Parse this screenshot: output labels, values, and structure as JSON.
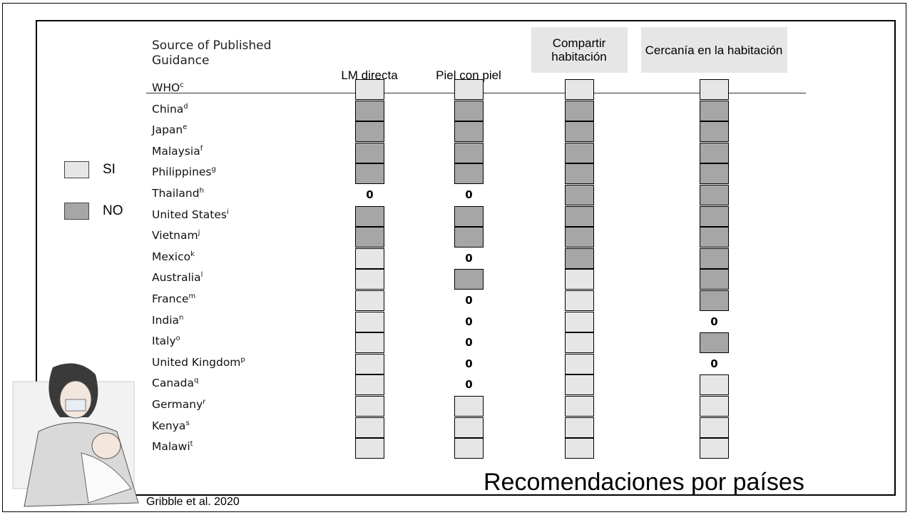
{
  "header": {
    "columns": [
      "Source of Published Guidance",
      "LM directa",
      "Piel con piel",
      "Compartir habitación",
      "Cercanía en la habitación"
    ]
  },
  "legend": [
    {
      "label": "SI",
      "color": "#e6e6e6"
    },
    {
      "label": "NO",
      "color": "#a6a6a6"
    }
  ],
  "table": {
    "rows": [
      {
        "name": "WHO",
        "sup": "c",
        "cells": [
          "SI",
          "SI",
          "SI",
          "SI"
        ]
      },
      {
        "name": "China",
        "sup": "d",
        "cells": [
          "NO",
          "NO",
          "NO",
          "NO"
        ]
      },
      {
        "name": "Japan",
        "sup": "e",
        "cells": [
          "NO",
          "NO",
          "NO",
          "NO"
        ]
      },
      {
        "name": "Malaysia",
        "sup": "f",
        "cells": [
          "NO",
          "NO",
          "NO",
          "NO"
        ]
      },
      {
        "name": "Philippines",
        "sup": "g",
        "cells": [
          "NO",
          "NO",
          "NO",
          "NO"
        ]
      },
      {
        "name": "Thailand",
        "sup": "h",
        "cells": [
          "0",
          "0",
          "NO",
          "NO"
        ]
      },
      {
        "name": "United States",
        "sup": "i",
        "cells": [
          "NO",
          "NO",
          "NO",
          "NO"
        ]
      },
      {
        "name": "Vietnam",
        "sup": "j",
        "cells": [
          "NO",
          "NO",
          "NO",
          "NO"
        ]
      },
      {
        "name": "Mexico",
        "sup": "k",
        "cells": [
          "SI",
          "0",
          "NO",
          "NO"
        ]
      },
      {
        "name": "Australia",
        "sup": "l",
        "cells": [
          "SI",
          "NO",
          "SI",
          "NO"
        ]
      },
      {
        "name": "France",
        "sup": "m",
        "cells": [
          "SI",
          "0",
          "SI",
          "NO"
        ]
      },
      {
        "name": "India",
        "sup": "n",
        "cells": [
          "SI",
          "0",
          "SI",
          "0"
        ]
      },
      {
        "name": "Italy",
        "sup": "o",
        "cells": [
          "SI",
          "0",
          "SI",
          "NO"
        ]
      },
      {
        "name": "United Kingdom",
        "sup": "p",
        "cells": [
          "SI",
          "0",
          "SI",
          "0"
        ]
      },
      {
        "name": "Canada",
        "sup": "q",
        "cells": [
          "SI",
          "0",
          "SI",
          "SI"
        ]
      },
      {
        "name": "Germany",
        "sup": "r",
        "cells": [
          "SI",
          "SI",
          "SI",
          "SI"
        ]
      },
      {
        "name": "Kenya",
        "sup": "s",
        "cells": [
          "SI",
          "SI",
          "SI",
          "SI"
        ]
      },
      {
        "name": "Malawi",
        "sup": "t",
        "cells": [
          "SI",
          "SI",
          "SI",
          "SI"
        ]
      }
    ]
  },
  "footer": {
    "caption": "Recomendaciones por países",
    "citation": "Gribble et al. 2020"
  }
}
